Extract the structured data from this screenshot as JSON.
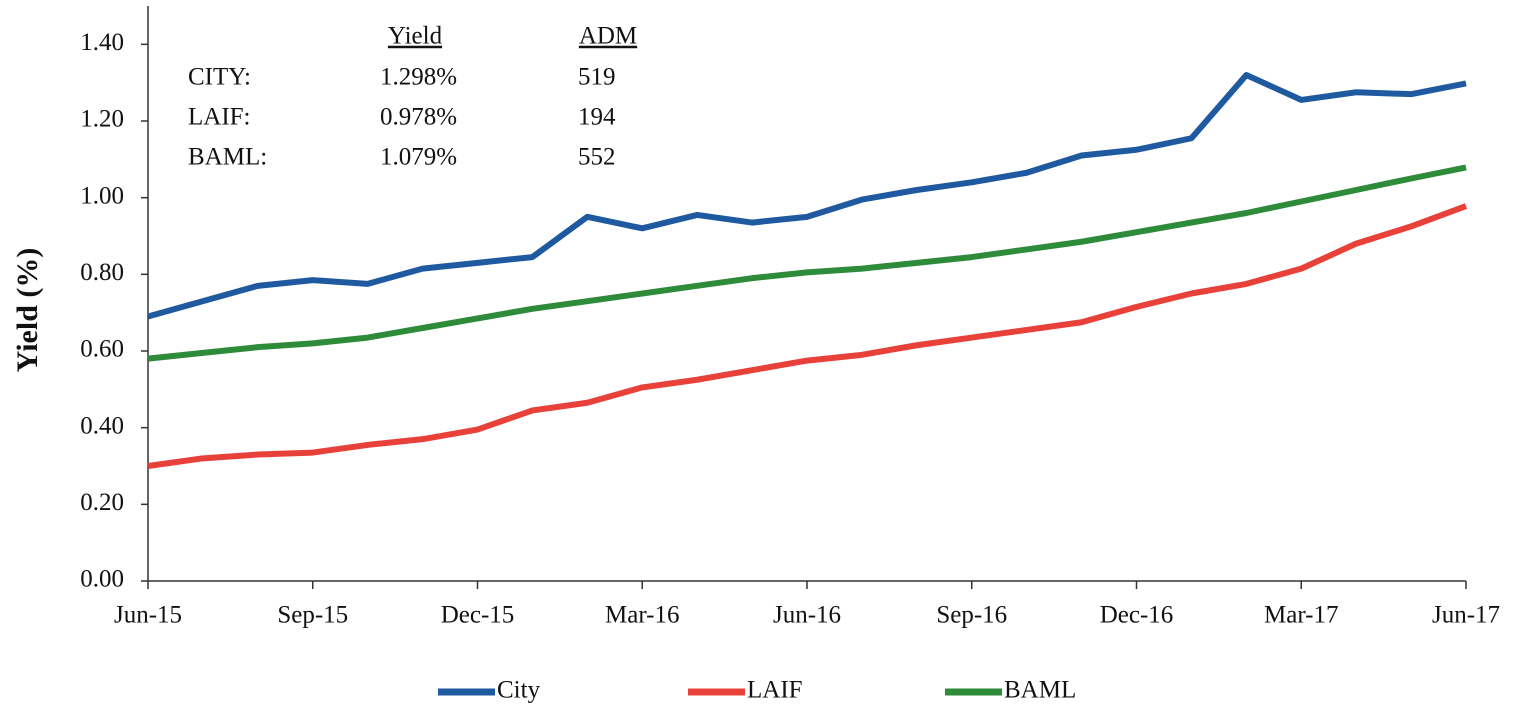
{
  "chart_data": {
    "type": "line",
    "y_label": "Yield (%)",
    "categories": [
      "Jun-15",
      null,
      null,
      "Sep-15",
      null,
      null,
      "Dec-15",
      null,
      null,
      "Mar-16",
      null,
      null,
      "Jun-16",
      null,
      null,
      "Sep-16",
      null,
      null,
      "Dec-16",
      null,
      null,
      "Mar-17",
      null,
      null,
      "Jun-17"
    ],
    "series": [
      {
        "name": "City",
        "color": "#1f5aa0",
        "values": [
          0.69,
          0.73,
          0.77,
          0.785,
          0.775,
          0.815,
          0.83,
          0.845,
          0.95,
          0.92,
          0.955,
          0.935,
          0.95,
          0.995,
          1.02,
          1.04,
          1.065,
          1.11,
          1.125,
          1.155,
          1.32,
          1.255,
          1.275,
          1.27,
          1.298
        ]
      },
      {
        "name": "LAIF",
        "color": "#e8413a",
        "values": [
          0.3,
          0.32,
          0.33,
          0.335,
          0.355,
          0.37,
          0.395,
          0.445,
          0.465,
          0.505,
          0.525,
          0.55,
          0.575,
          0.59,
          0.615,
          0.635,
          0.655,
          0.675,
          0.715,
          0.75,
          0.775,
          0.815,
          0.88,
          0.925,
          0.978
        ]
      },
      {
        "name": "BAML",
        "color": "#2e8b3a",
        "values": [
          0.58,
          0.595,
          0.61,
          0.62,
          0.635,
          0.66,
          0.685,
          0.71,
          0.73,
          0.75,
          0.77,
          0.79,
          0.805,
          0.815,
          0.83,
          0.845,
          0.865,
          0.885,
          0.91,
          0.935,
          0.96,
          0.99,
          1.02,
          1.05,
          1.079
        ]
      }
    ],
    "ylim": [
      0,
      1.5
    ],
    "yticks": [
      {
        "value": 0,
        "label": "0.00"
      },
      {
        "value": 0.2,
        "label": "0.20"
      },
      {
        "value": 0.4,
        "label": "0.40"
      },
      {
        "value": 0.6,
        "label": "0.60"
      },
      {
        "value": 0.8,
        "label": "0.80"
      },
      {
        "value": 1.0,
        "label": "1.00"
      },
      {
        "value": 1.2,
        "label": "1.20"
      },
      {
        "value": 1.4,
        "label": "1.40"
      }
    ],
    "legend": "bottom",
    "annotation_table": {
      "headers": [
        "Yield",
        "ADM"
      ],
      "rows": [
        [
          "CITY:",
          "1.298%",
          "519"
        ],
        [
          "LAIF:",
          "0.978%",
          "194"
        ],
        [
          "BAML:",
          "1.079%",
          "552"
        ]
      ]
    }
  }
}
